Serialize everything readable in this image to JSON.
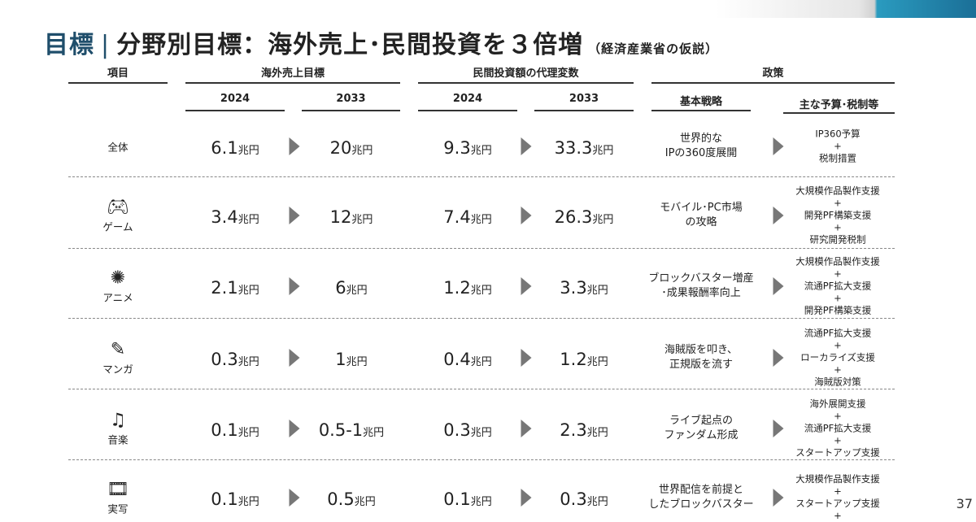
{
  "title": {
    "main": "目標",
    "rest": "分野別目標：海外売上･民間投資を３倍増",
    "note": "（経済産業省の仮説）"
  },
  "headers": {
    "item": "項目",
    "overseas": "海外売上目標",
    "invest": "民間投資額の代理変数",
    "policy": "政策",
    "y2024": "2024",
    "y2033": "2033",
    "strategy": "基本戦略",
    "budget": "主な予算･税制等"
  },
  "unit": "兆円",
  "rows": [
    {
      "label": "全体",
      "icon": "",
      "s24": "6.1",
      "s33": "20",
      "i24": "9.3",
      "i33": "33.3",
      "strategy": [
        "世界的な",
        "IPの360度展開"
      ],
      "policy": [
        "IP360予算",
        "+",
        "税制措置"
      ]
    },
    {
      "label": "ゲーム",
      "icon": "gamepad-icon",
      "s24": "3.4",
      "s33": "12",
      "i24": "7.4",
      "i33": "26.3",
      "strategy": [
        "モバイル･PC市場",
        "の攻略"
      ],
      "policy": [
        "大規模作品製作支援",
        "+",
        "開発PF構築支援",
        "+",
        "研究開発税制"
      ]
    },
    {
      "label": "アニメ",
      "icon": "anime-icon",
      "s24": "2.1",
      "s33": "6",
      "i24": "1.2",
      "i33": "3.3",
      "strategy": [
        "ブロックバスター増産",
        "･成果報酬率向上"
      ],
      "policy": [
        "大規模作品製作支援",
        "+",
        "流通PF拡大支援",
        "+",
        "開発PF構築支援"
      ]
    },
    {
      "label": "マンガ",
      "icon": "manga-icon",
      "s24": "0.3",
      "s33": "1",
      "i24": "0.4",
      "i33": "1.2",
      "strategy": [
        "海賊版を叩き、",
        "正規版を流す"
      ],
      "policy": [
        "流通PF拡大支援",
        "+",
        "ローカライズ支援",
        "+",
        "海賊版対策"
      ]
    },
    {
      "label": "音楽",
      "icon": "music-icon",
      "s24": "0.1",
      "s33": "0.5-1",
      "i24": "0.3",
      "i33": "2.3",
      "strategy": [
        "ライブ起点の",
        "ファンダム形成"
      ],
      "policy": [
        "海外展開支援",
        "+",
        "流通PF拡大支援",
        "+",
        "スタートアップ支援"
      ]
    },
    {
      "label": "実写",
      "icon": "film-icon",
      "s24": "0.1",
      "s33": "0.5",
      "i24": "0.1",
      "i33": "0.3",
      "strategy": [
        "世界配信を前提と",
        "したブロックバスター"
      ],
      "policy": [
        "大規模作品製作支援",
        "+",
        "スタートアップ支援",
        "+"
      ]
    }
  ],
  "page": "37"
}
